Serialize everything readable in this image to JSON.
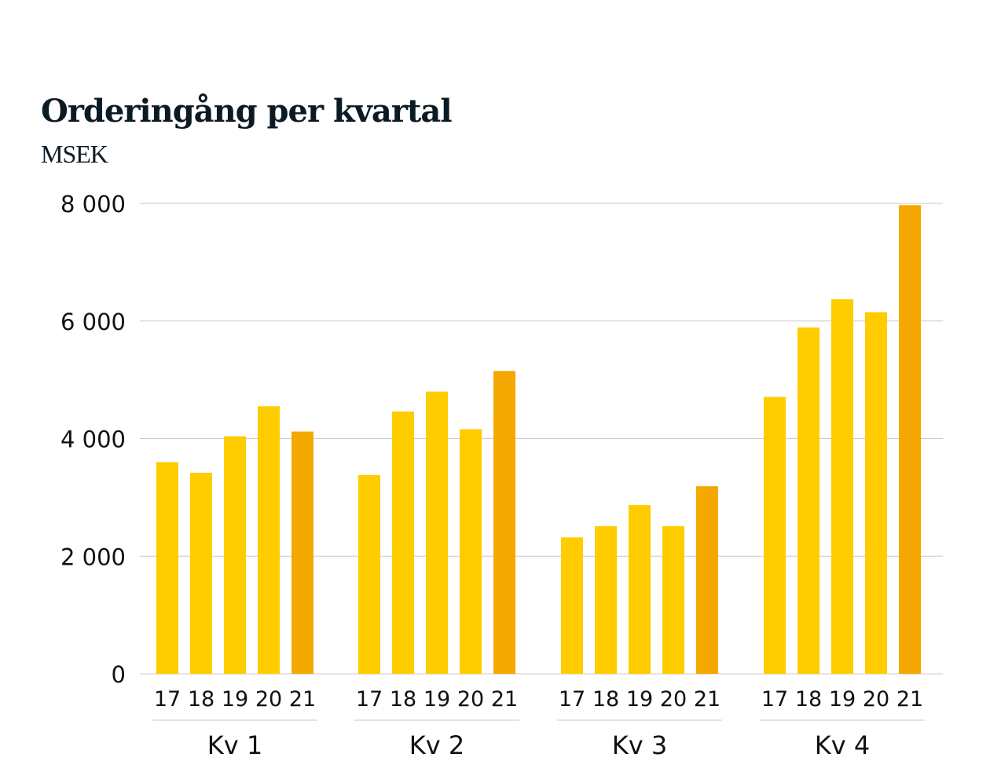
{
  "chart_data": {
    "type": "bar",
    "title": "Orderingång per kvartal",
    "subtitle": "MSEK",
    "ylim": [
      0,
      8000
    ],
    "yticks": [
      0,
      2000,
      4000,
      6000,
      8000
    ],
    "ytick_labels": [
      "0",
      "2 000",
      "4 000",
      "6 000",
      "8 000"
    ],
    "grid": true,
    "groups": [
      {
        "label": "Kv 1",
        "years": [
          "17",
          "18",
          "19",
          "20",
          "21"
        ],
        "values": [
          3600,
          3420,
          4040,
          4550,
          4120
        ]
      },
      {
        "label": "Kv 2",
        "years": [
          "17",
          "18",
          "19",
          "20",
          "21"
        ],
        "values": [
          3380,
          4460,
          4800,
          4160,
          5150
        ]
      },
      {
        "label": "Kv 3",
        "years": [
          "17",
          "18",
          "19",
          "20",
          "21"
        ],
        "values": [
          2320,
          2510,
          2870,
          2510,
          3190
        ]
      },
      {
        "label": "Kv 4",
        "years": [
          "17",
          "18",
          "19",
          "20",
          "21"
        ],
        "values": [
          4710,
          5890,
          6370,
          6150,
          7970
        ]
      }
    ],
    "colors": {
      "bar": "#ffcc00",
      "bar_highlight": "#f5a800",
      "grid": "#c8c8c8",
      "text": "#111111",
      "title": "#0c1a24"
    }
  }
}
